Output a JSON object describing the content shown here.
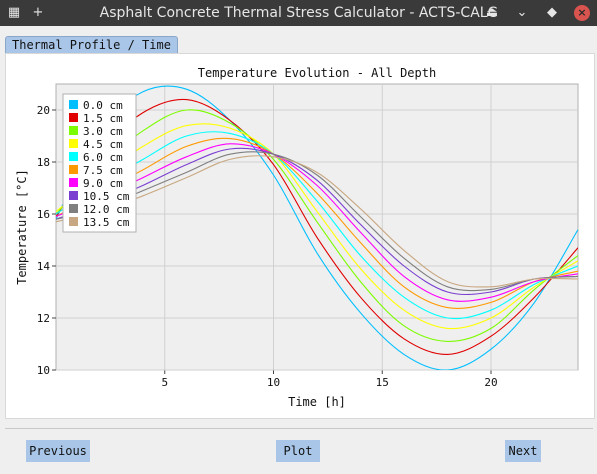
{
  "window": {
    "title": "Asphalt Concrete Thermal Stress Calculator - ACTS-CALC",
    "menu_icon": "grid-icon",
    "new_icon": "plus-icon"
  },
  "tabs": [
    {
      "label": "Thermal Profile / Time",
      "active": true
    }
  ],
  "nav": {
    "previous_label": "Previous",
    "plot_label": "Plot",
    "next_label": "Next"
  },
  "chart_data": {
    "type": "line",
    "title": "Temperature Evolution - All Depth",
    "xlabel": "Time [h]",
    "ylabel": "Temperature [°C]",
    "xlim": [
      0,
      24
    ],
    "ylim": [
      10,
      21
    ],
    "xticks": [
      5,
      10,
      15,
      20
    ],
    "yticks": [
      10,
      12,
      14,
      16,
      18,
      20
    ],
    "grid": true,
    "legend_position": "top-left",
    "x": [
      0,
      2,
      4,
      6,
      8,
      10,
      12,
      14,
      16,
      18,
      20,
      22,
      24
    ],
    "series": [
      {
        "name": "0.0 cm",
        "color": "#00bfff",
        "values": [
          15.8,
          19.2,
          20.7,
          20.8,
          19.6,
          17.5,
          14.5,
          12.2,
          10.6,
          10.0,
          10.8,
          12.6,
          15.4
        ]
      },
      {
        "name": "1.5 cm",
        "color": "#e00000",
        "values": [
          15.9,
          18.4,
          19.9,
          20.4,
          19.6,
          17.9,
          15.1,
          12.8,
          11.2,
          10.6,
          11.3,
          12.8,
          14.7
        ]
      },
      {
        "name": "3.0 cm",
        "color": "#7cfc00",
        "values": [
          16.0,
          17.8,
          19.2,
          20.0,
          19.5,
          18.1,
          15.7,
          13.4,
          11.7,
          11.1,
          11.6,
          13.1,
          14.4
        ]
      },
      {
        "name": "4.5 cm",
        "color": "#ffff00",
        "values": [
          16.1,
          17.4,
          18.6,
          19.4,
          19.3,
          18.3,
          16.1,
          13.9,
          12.3,
          11.6,
          12.0,
          13.2,
          14.2
        ]
      },
      {
        "name": "6.0 cm",
        "color": "#00ffff",
        "values": [
          16.0,
          17.1,
          18.1,
          19.0,
          19.1,
          18.3,
          16.5,
          14.4,
          12.8,
          12.0,
          12.3,
          13.3,
          14.0
        ]
      },
      {
        "name": "7.5 cm",
        "color": "#ff9900",
        "values": [
          15.9,
          16.8,
          17.7,
          18.6,
          18.9,
          18.3,
          16.8,
          14.9,
          13.2,
          12.4,
          12.6,
          13.4,
          13.8
        ]
      },
      {
        "name": "9.0 cm",
        "color": "#ff00ff",
        "values": [
          15.9,
          16.6,
          17.4,
          18.2,
          18.7,
          18.3,
          17.1,
          15.3,
          13.6,
          12.7,
          12.8,
          13.4,
          13.7
        ]
      },
      {
        "name": "10.5 cm",
        "color": "#7a3fd1",
        "values": [
          15.8,
          16.4,
          17.1,
          17.9,
          18.5,
          18.3,
          17.3,
          15.6,
          14.0,
          13.0,
          13.0,
          13.5,
          13.6
        ]
      },
      {
        "name": "12.0 cm",
        "color": "#7f7f7f",
        "values": [
          15.8,
          16.2,
          16.9,
          17.6,
          18.3,
          18.3,
          17.5,
          15.9,
          14.3,
          13.2,
          13.1,
          13.5,
          13.6
        ]
      },
      {
        "name": "13.5 cm",
        "color": "#c8a882",
        "values": [
          15.7,
          16.1,
          16.7,
          17.4,
          18.1,
          18.2,
          17.6,
          16.2,
          14.6,
          13.4,
          13.2,
          13.5,
          13.5
        ]
      }
    ]
  },
  "colors": {
    "titlebar": "#3a3a3a",
    "accent": "#a9c6e8",
    "plot_background": "#efefef",
    "grid": "#d0d0d0"
  }
}
